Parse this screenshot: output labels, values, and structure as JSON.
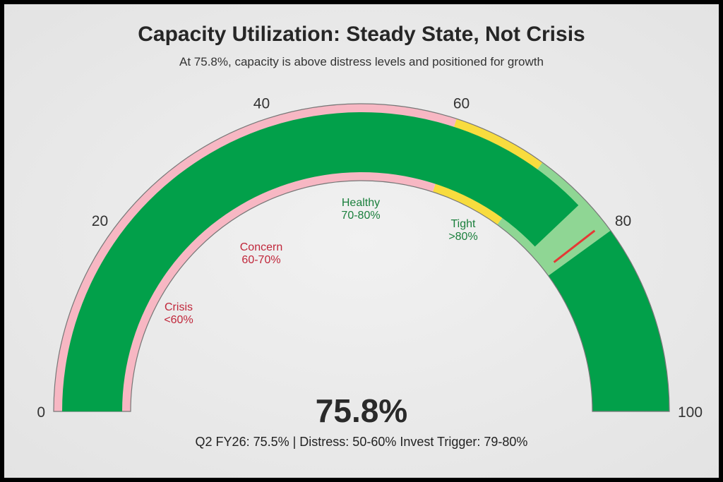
{
  "title": "Capacity Utilization: Steady State, Not Crisis",
  "subtitle": "At 75.8%, capacity is above distress levels and positioned for growth",
  "value_label": "75.8%",
  "footer": "Q2 FY26: 75.5% | Distress: 50-60% Invest Trigger: 79-80%",
  "chart_data": {
    "type": "gauge",
    "range": [
      0,
      100
    ],
    "value": 75.8,
    "ticks": [
      "0",
      "20",
      "40",
      "60",
      "80",
      "100"
    ],
    "tick_values": [
      0,
      20,
      40,
      60,
      80,
      100
    ],
    "marker": 79,
    "zones": [
      {
        "name": "Crisis",
        "range_label": "<60%",
        "from": 0,
        "to": 60,
        "color": "#f7b7c3",
        "label_color": "#c0263a"
      },
      {
        "name": "Concern",
        "range_label": "60-70%",
        "from": 60,
        "to": 70,
        "color": "#f8dc3e",
        "label_color": "#c0263a"
      },
      {
        "name": "Healthy",
        "range_label": "70-80%",
        "from": 70,
        "to": 80,
        "color": "#8fd694",
        "label_color": "#1a7f3c"
      },
      {
        "name": "Tight",
        "range_label": ">80%",
        "from": 80,
        "to": 100,
        "color": "#02a04a",
        "label_color": "#1a7f3c"
      }
    ],
    "value_color": "#02a04a",
    "marker_color": "#e53935"
  }
}
